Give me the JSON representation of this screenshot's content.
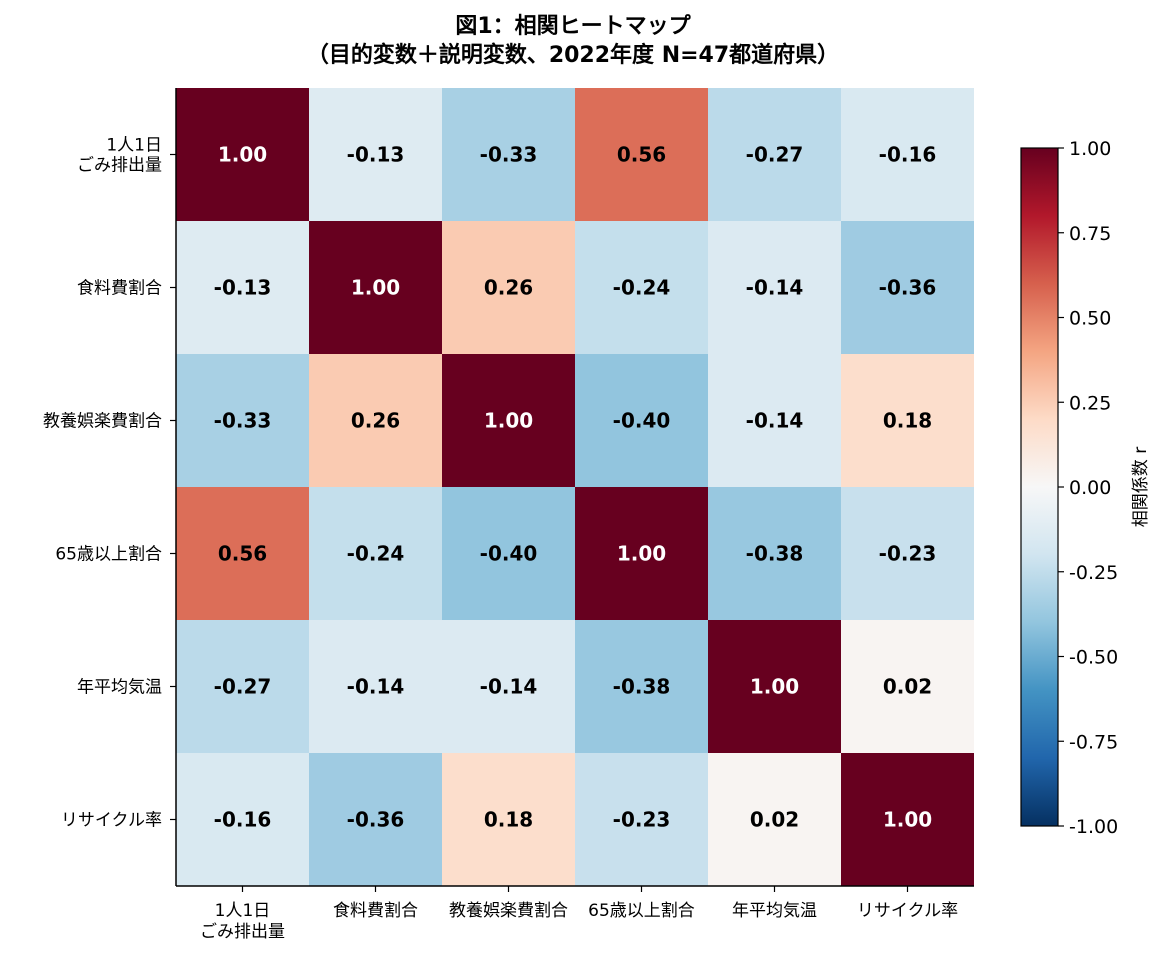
{
  "chart_data": {
    "type": "heatmap",
    "title_line1": "図1：相関ヒートマップ",
    "title_line2": "（目的変数＋説明変数、2022年度 N=47都道府県）",
    "row_labels": [
      [
        "1人1日",
        "ごみ排出量"
      ],
      [
        "食料費割合"
      ],
      [
        "教養娯楽費割合"
      ],
      [
        "65歳以上割合"
      ],
      [
        "年平均気温"
      ],
      [
        "リサイクル率"
      ]
    ],
    "col_labels": [
      [
        "1人1日",
        "ごみ排出量"
      ],
      [
        "食料費割合"
      ],
      [
        "教養娯楽費割合"
      ],
      [
        "65歳以上割合"
      ],
      [
        "年平均気温"
      ],
      [
        "リサイクル率"
      ]
    ],
    "matrix": [
      [
        1.0,
        -0.13,
        -0.33,
        0.56,
        -0.27,
        -0.16
      ],
      [
        -0.13,
        1.0,
        0.26,
        -0.24,
        -0.14,
        -0.36
      ],
      [
        -0.33,
        0.26,
        1.0,
        -0.4,
        -0.14,
        0.18
      ],
      [
        0.56,
        -0.24,
        -0.4,
        1.0,
        -0.38,
        -0.23
      ],
      [
        -0.27,
        -0.14,
        -0.14,
        -0.38,
        1.0,
        0.02
      ],
      [
        -0.16,
        -0.36,
        0.18,
        -0.23,
        0.02,
        1.0
      ]
    ],
    "value_format": "0.00",
    "colormap": "RdBu_r",
    "vmin": -1.0,
    "vmax": 1.0,
    "colorbar": {
      "label": "相関係数 r",
      "ticks": [
        1.0,
        0.75,
        0.5,
        0.25,
        0.0,
        -0.25,
        -0.5,
        -0.75,
        -1.0
      ],
      "tick_labels": [
        "1.00",
        "0.75",
        "0.50",
        "0.25",
        "0.00",
        "-0.25",
        "-0.50",
        "-0.75",
        "-1.00"
      ]
    },
    "colors": {
      "diag": "#67001f",
      "strong_pos": "#d6604d",
      "text_dark": "#000000",
      "text_light": "#ffffff"
    }
  }
}
